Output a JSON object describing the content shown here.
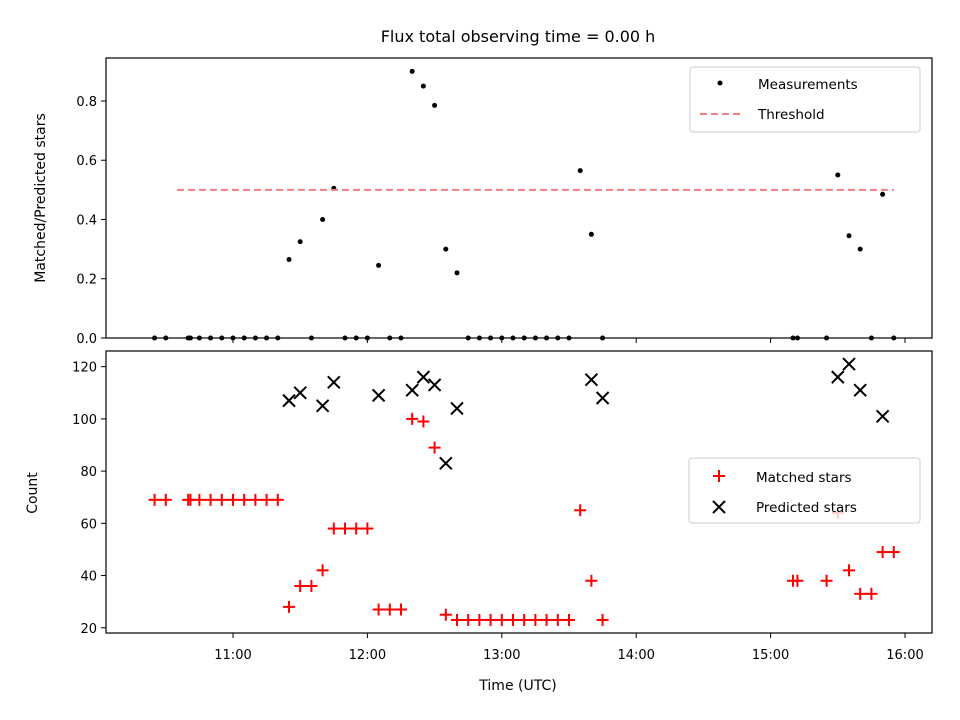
{
  "title": "Flux total observing time = 0.00 h",
  "colors": {
    "measurements": "#000000",
    "threshold": "#f08080",
    "matched": "#ff0000",
    "predicted": "#000000"
  },
  "chart_data": [
    {
      "type": "scatter",
      "ylabel": "Matched/Predicted stars",
      "ylim": [
        0,
        0.945
      ],
      "yticks": [
        "0.0",
        "0.2",
        "0.4",
        "0.6",
        "0.8"
      ],
      "legend": {
        "placement": "upper right",
        "entries": [
          "Measurements",
          "Threshold"
        ]
      },
      "threshold": {
        "name": "Threshold",
        "y": 0.5,
        "x_start": "10:35",
        "x_end": "15:55"
      },
      "series": [
        {
          "name": "Measurements",
          "x": [
            "10:25",
            "10:30",
            "10:40",
            "10:41",
            "10:45",
            "10:50",
            "10:55",
            "11:00",
            "11:05",
            "11:10",
            "11:15",
            "11:20",
            "11:25",
            "11:30",
            "11:35",
            "11:40",
            "11:45",
            "11:50",
            "11:55",
            "12:00",
            "12:05",
            "12:10",
            "12:15",
            "12:20",
            "12:25",
            "12:30",
            "12:35",
            "12:40",
            "12:45",
            "12:50",
            "12:55",
            "13:00",
            "13:05",
            "13:10",
            "13:15",
            "13:20",
            "13:25",
            "13:30",
            "13:35",
            "13:40",
            "13:45",
            "15:10",
            "15:12",
            "15:25",
            "15:30",
            "15:35",
            "15:40",
            "15:45",
            "15:50",
            "15:55"
          ],
          "y": [
            0,
            0,
            0,
            0,
            0,
            0,
            0,
            0,
            0,
            0,
            0,
            0,
            0.265,
            0.325,
            0,
            0.4,
            0.505,
            0,
            0,
            0,
            0.245,
            0,
            0,
            0.9,
            0.85,
            0.785,
            0.3,
            0.22,
            0,
            0,
            0,
            0,
            0,
            0,
            0,
            0,
            0,
            0,
            0.565,
            0.35,
            0,
            0,
            0,
            0,
            0.55,
            0.345,
            0.3,
            0,
            0.485,
            0
          ]
        }
      ]
    },
    {
      "type": "scatter",
      "ylabel": "Count",
      "xlabel": "Time (UTC)",
      "ylim": [
        18,
        126
      ],
      "yticks": [
        "20",
        "40",
        "60",
        "80",
        "100",
        "120"
      ],
      "x_ticks": [
        "11:00",
        "12:00",
        "13:00",
        "14:00",
        "15:00",
        "16:00"
      ],
      "legend": {
        "placement": "center right",
        "entries": [
          "Matched stars",
          "Predicted stars"
        ]
      },
      "series": [
        {
          "name": "Matched stars",
          "x": [
            "10:25",
            "10:30",
            "10:40",
            "10:41",
            "10:45",
            "10:50",
            "10:55",
            "11:00",
            "11:05",
            "11:10",
            "11:15",
            "11:20",
            "11:25",
            "11:30",
            "11:35",
            "11:40",
            "11:45",
            "11:50",
            "11:55",
            "12:00",
            "12:05",
            "12:10",
            "12:15",
            "12:20",
            "12:25",
            "12:30",
            "12:35",
            "12:40",
            "12:45",
            "12:50",
            "12:55",
            "13:00",
            "13:05",
            "13:10",
            "13:15",
            "13:20",
            "13:25",
            "13:30",
            "13:35",
            "13:40",
            "13:45",
            "15:10",
            "15:12",
            "15:25",
            "15:30",
            "15:35",
            "15:40",
            "15:45",
            "15:50",
            "15:55"
          ],
          "y": [
            69,
            69,
            69,
            69,
            69,
            69,
            69,
            69,
            69,
            69,
            69,
            69,
            28,
            36,
            36,
            42,
            58,
            58,
            58,
            58,
            27,
            27,
            27,
            100,
            99,
            89,
            25,
            23,
            23,
            23,
            23,
            23,
            23,
            23,
            23,
            23,
            23,
            23,
            65,
            38,
            23,
            38,
            38,
            38,
            64,
            42,
            33,
            33,
            49,
            49
          ]
        },
        {
          "name": "Predicted stars",
          "x": [
            "11:25",
            "11:30",
            "11:40",
            "11:45",
            "12:05",
            "12:20",
            "12:25",
            "12:30",
            "12:35",
            "12:40",
            "13:40",
            "13:45",
            "15:30",
            "15:35",
            "15:40",
            "15:50"
          ],
          "y": [
            107,
            110,
            105,
            114,
            109,
            111,
            116,
            113,
            83,
            104,
            115,
            108,
            116,
            121,
            111,
            101
          ]
        }
      ]
    }
  ]
}
